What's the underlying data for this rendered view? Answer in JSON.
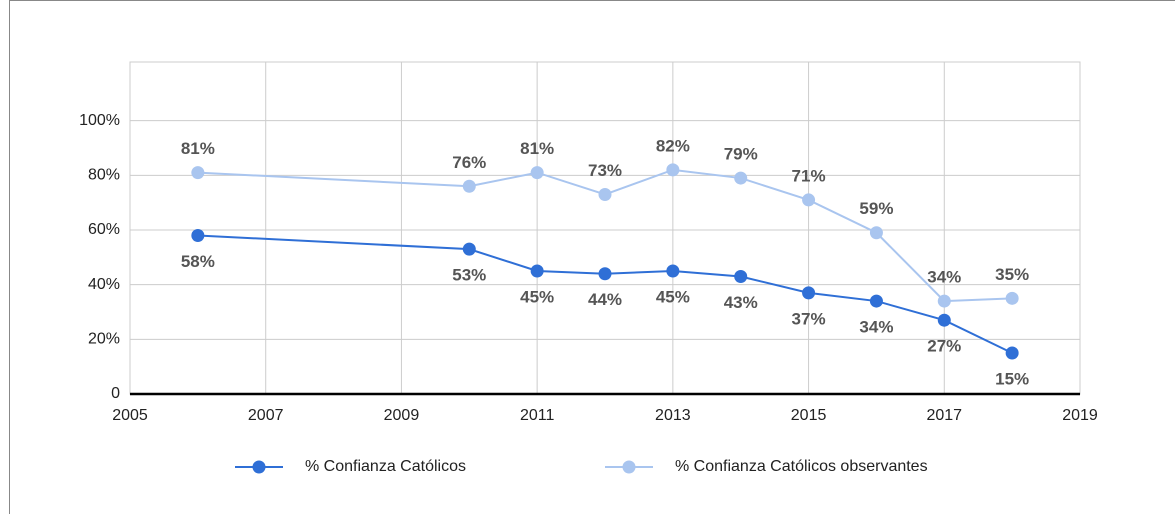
{
  "chart_data": {
    "type": "line",
    "x": [
      2006,
      2010,
      2011,
      2012,
      2013,
      2014,
      2015,
      2016,
      2017,
      2018
    ],
    "series": [
      {
        "name": "% Confianza Católicos",
        "color": "#2f6fd6",
        "values": [
          58,
          53,
          45,
          44,
          45,
          43,
          37,
          34,
          27,
          15
        ],
        "value_labels": [
          "58%",
          "53%",
          "45%",
          "44%",
          "45%",
          "43%",
          "37%",
          "34%",
          "27%",
          "15%"
        ]
      },
      {
        "name": "% Confianza Católicos observantes",
        "color": "#a9c5ef",
        "values": [
          81,
          76,
          81,
          73,
          82,
          79,
          71,
          59,
          34,
          35
        ],
        "value_labels": [
          "81%",
          "76%",
          "81%",
          "73%",
          "82%",
          "79%",
          "71%",
          "59%",
          "34%",
          "35%"
        ]
      }
    ],
    "xlim": [
      2005,
      2019
    ],
    "xticks": [
      2005,
      2007,
      2009,
      2011,
      2013,
      2015,
      2017,
      2019
    ],
    "ylim": [
      0,
      120
    ],
    "yticks": [
      0,
      {
        "value": 20,
        "label": "20%"
      },
      {
        "value": 40,
        "label": "40%"
      },
      {
        "value": 60,
        "label": "60%"
      },
      {
        "value": 80,
        "label": "80%"
      },
      {
        "value": 100,
        "label": "100%"
      }
    ],
    "grid": true,
    "legend": "bottom"
  }
}
